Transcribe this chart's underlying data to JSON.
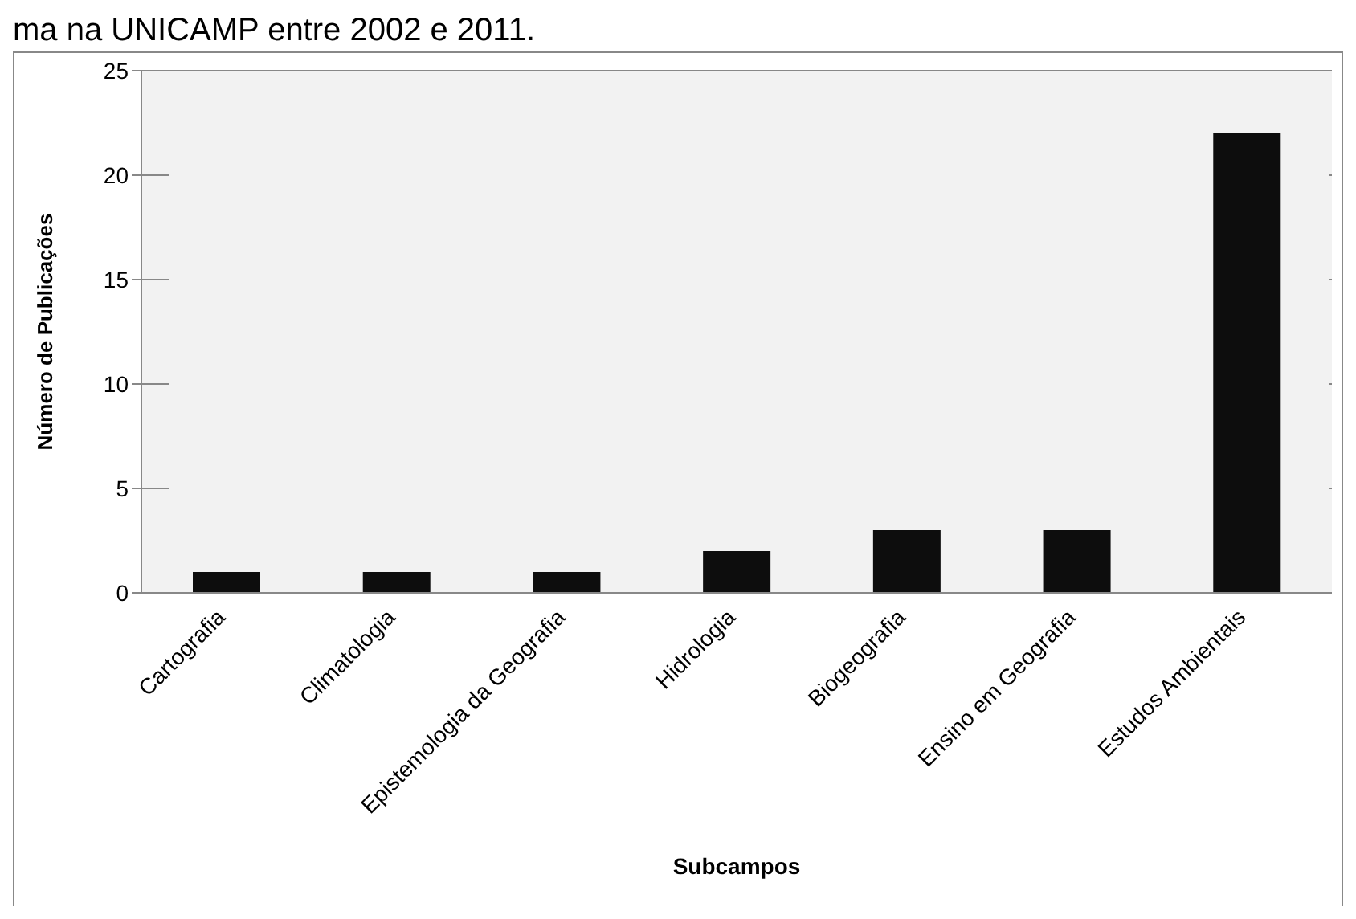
{
  "chart_data": {
    "type": "bar",
    "title": "ma na UNICAMP entre 2002 e 2011.",
    "xlabel": "Subcampos",
    "ylabel": "Número de Publicações",
    "categories": [
      "Cartografia",
      "Climatologia",
      "Epistemologia da Geografia",
      "Hidrologia",
      "Biogeografia",
      "Ensino em Geografia",
      "Estudos Ambientais"
    ],
    "values": [
      1,
      1,
      1,
      2,
      3,
      3,
      22
    ],
    "color": "#0d0d0d",
    "ylim": [
      0,
      25
    ],
    "yticks": [
      0,
      5,
      10,
      15,
      20,
      25
    ],
    "grid": "y"
  }
}
